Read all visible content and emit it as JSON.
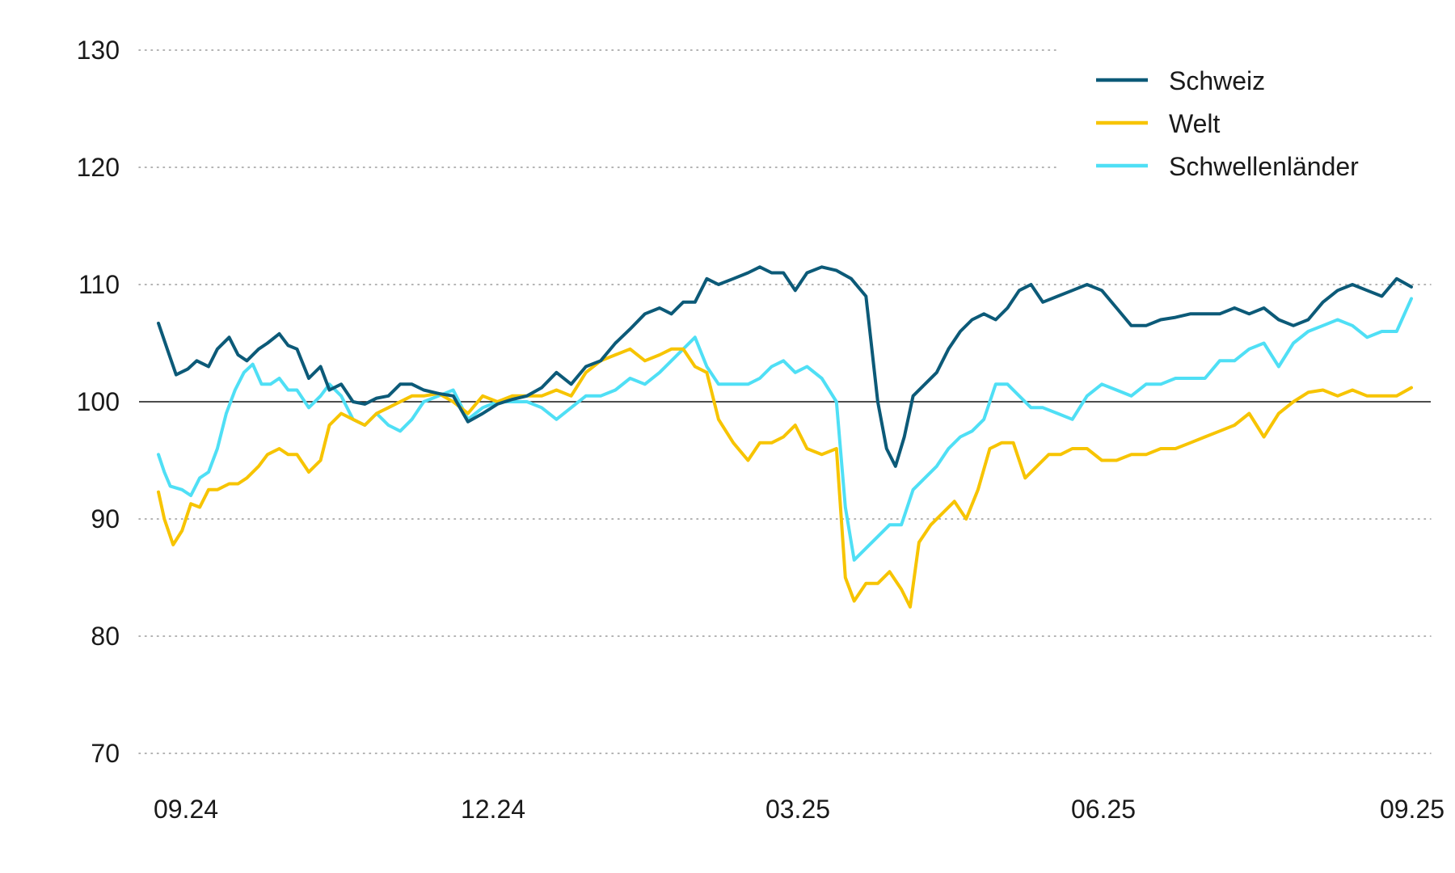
{
  "chart_data": {
    "type": "line",
    "title": "",
    "xlabel": "",
    "ylabel": "",
    "ylim": [
      70,
      130
    ],
    "yticks": [
      70,
      80,
      90,
      100,
      110,
      120,
      130
    ],
    "x_tick_labels": [
      "09.24",
      "12.24",
      "03.25",
      "06.25",
      "09.25"
    ],
    "baseline": 100,
    "grid": "horizontal dotted",
    "legend_position": "top-right",
    "series": [
      {
        "name": "Schweiz",
        "color": "#0c5a78",
        "values": [
          [
            0,
            106.7
          ],
          [
            0.03,
            104.5
          ],
          [
            0.06,
            102.3
          ],
          [
            0.1,
            102.8
          ],
          [
            0.13,
            103.5
          ],
          [
            0.17,
            103.0
          ],
          [
            0.2,
            104.5
          ],
          [
            0.24,
            105.5
          ],
          [
            0.27,
            104.0
          ],
          [
            0.3,
            103.5
          ],
          [
            0.34,
            104.5
          ],
          [
            0.37,
            105.0
          ],
          [
            0.41,
            105.8
          ],
          [
            0.44,
            104.8
          ],
          [
            0.47,
            104.5
          ],
          [
            0.51,
            102.0
          ],
          [
            0.55,
            103.0
          ],
          [
            0.58,
            101.0
          ],
          [
            0.62,
            101.5
          ],
          [
            0.66,
            100.0
          ],
          [
            0.7,
            99.8
          ],
          [
            0.74,
            100.3
          ],
          [
            0.78,
            100.5
          ],
          [
            0.82,
            101.5
          ],
          [
            0.86,
            101.5
          ],
          [
            0.9,
            101.0
          ],
          [
            0.95,
            100.7
          ],
          [
            1.0,
            100.5
          ],
          [
            1.05,
            98.3
          ],
          [
            1.1,
            99.0
          ],
          [
            1.15,
            99.8
          ],
          [
            1.2,
            100.2
          ],
          [
            1.25,
            100.5
          ],
          [
            1.3,
            101.2
          ],
          [
            1.35,
            102.5
          ],
          [
            1.4,
            101.5
          ],
          [
            1.45,
            103.0
          ],
          [
            1.5,
            103.5
          ],
          [
            1.55,
            105.0
          ],
          [
            1.6,
            106.2
          ],
          [
            1.65,
            107.5
          ],
          [
            1.7,
            108.0
          ],
          [
            1.74,
            107.5
          ],
          [
            1.78,
            108.5
          ],
          [
            1.82,
            108.5
          ],
          [
            1.86,
            110.5
          ],
          [
            1.9,
            110.0
          ],
          [
            1.95,
            110.5
          ],
          [
            2.0,
            111.0
          ],
          [
            2.04,
            111.5
          ],
          [
            2.08,
            111.0
          ],
          [
            2.12,
            111.0
          ],
          [
            2.16,
            109.5
          ],
          [
            2.2,
            111.0
          ],
          [
            2.25,
            111.5
          ],
          [
            2.3,
            111.2
          ],
          [
            2.35,
            110.5
          ],
          [
            2.4,
            109.0
          ],
          [
            2.44,
            100.0
          ],
          [
            2.47,
            96.0
          ],
          [
            2.5,
            94.5
          ],
          [
            2.53,
            97.0
          ],
          [
            2.56,
            100.5
          ],
          [
            2.6,
            101.5
          ],
          [
            2.64,
            102.5
          ],
          [
            2.68,
            104.5
          ],
          [
            2.72,
            106.0
          ],
          [
            2.76,
            107.0
          ],
          [
            2.8,
            107.5
          ],
          [
            2.84,
            107.0
          ],
          [
            2.88,
            108.0
          ],
          [
            2.92,
            109.5
          ],
          [
            2.96,
            110.0
          ],
          [
            3.0,
            108.5
          ],
          [
            3.05,
            109.0
          ],
          [
            3.1,
            109.5
          ],
          [
            3.15,
            110.0
          ],
          [
            3.2,
            109.5
          ],
          [
            3.25,
            108.0
          ],
          [
            3.3,
            106.5
          ],
          [
            3.35,
            106.5
          ],
          [
            3.4,
            107.0
          ],
          [
            3.45,
            107.2
          ],
          [
            3.5,
            107.5
          ],
          [
            3.55,
            107.5
          ],
          [
            3.6,
            107.5
          ],
          [
            3.65,
            108.0
          ],
          [
            3.7,
            107.5
          ],
          [
            3.75,
            108.0
          ],
          [
            3.8,
            107.0
          ],
          [
            3.85,
            106.5
          ],
          [
            3.9,
            107.0
          ],
          [
            3.95,
            108.5
          ],
          [
            4.0,
            109.5
          ],
          [
            4.05,
            110.0
          ],
          [
            4.1,
            109.5
          ],
          [
            4.15,
            109.0
          ],
          [
            4.2,
            110.5
          ],
          [
            4.25,
            109.8
          ]
        ]
      },
      {
        "name": "Welt",
        "color": "#f7c400",
        "values": [
          [
            0,
            92.3
          ],
          [
            0.02,
            90.0
          ],
          [
            0.05,
            87.8
          ],
          [
            0.08,
            89.0
          ],
          [
            0.11,
            91.3
          ],
          [
            0.14,
            91.0
          ],
          [
            0.17,
            92.5
          ],
          [
            0.2,
            92.5
          ],
          [
            0.24,
            93.0
          ],
          [
            0.27,
            93.0
          ],
          [
            0.3,
            93.5
          ],
          [
            0.34,
            94.5
          ],
          [
            0.37,
            95.5
          ],
          [
            0.41,
            96.0
          ],
          [
            0.44,
            95.5
          ],
          [
            0.47,
            95.5
          ],
          [
            0.51,
            94.0
          ],
          [
            0.55,
            95.0
          ],
          [
            0.58,
            98.0
          ],
          [
            0.62,
            99.0
          ],
          [
            0.66,
            98.5
          ],
          [
            0.7,
            98.0
          ],
          [
            0.74,
            99.0
          ],
          [
            0.78,
            99.5
          ],
          [
            0.82,
            100.0
          ],
          [
            0.86,
            100.5
          ],
          [
            0.9,
            100.5
          ],
          [
            0.95,
            100.7
          ],
          [
            1.0,
            100.0
          ],
          [
            1.05,
            99.0
          ],
          [
            1.1,
            100.5
          ],
          [
            1.15,
            100.0
          ],
          [
            1.2,
            100.5
          ],
          [
            1.25,
            100.5
          ],
          [
            1.3,
            100.5
          ],
          [
            1.35,
            101.0
          ],
          [
            1.4,
            100.5
          ],
          [
            1.45,
            102.5
          ],
          [
            1.5,
            103.5
          ],
          [
            1.55,
            104.0
          ],
          [
            1.6,
            104.5
          ],
          [
            1.65,
            103.5
          ],
          [
            1.7,
            104.0
          ],
          [
            1.74,
            104.5
          ],
          [
            1.78,
            104.5
          ],
          [
            1.82,
            103.0
          ],
          [
            1.86,
            102.5
          ],
          [
            1.9,
            98.5
          ],
          [
            1.95,
            96.5
          ],
          [
            2.0,
            95.0
          ],
          [
            2.04,
            96.5
          ],
          [
            2.08,
            96.5
          ],
          [
            2.12,
            97.0
          ],
          [
            2.16,
            98.0
          ],
          [
            2.2,
            96.0
          ],
          [
            2.25,
            95.5
          ],
          [
            2.3,
            96.0
          ],
          [
            2.33,
            85.0
          ],
          [
            2.36,
            83.0
          ],
          [
            2.4,
            84.5
          ],
          [
            2.44,
            84.5
          ],
          [
            2.48,
            85.5
          ],
          [
            2.52,
            84.0
          ],
          [
            2.55,
            82.5
          ],
          [
            2.58,
            88.0
          ],
          [
            2.62,
            89.5
          ],
          [
            2.66,
            90.5
          ],
          [
            2.7,
            91.5
          ],
          [
            2.74,
            90.0
          ],
          [
            2.78,
            92.5
          ],
          [
            2.82,
            96.0
          ],
          [
            2.86,
            96.5
          ],
          [
            2.9,
            96.5
          ],
          [
            2.94,
            93.5
          ],
          [
            2.98,
            94.5
          ],
          [
            3.02,
            95.5
          ],
          [
            3.06,
            95.5
          ],
          [
            3.1,
            96.0
          ],
          [
            3.15,
            96.0
          ],
          [
            3.2,
            95.0
          ],
          [
            3.25,
            95.0
          ],
          [
            3.3,
            95.5
          ],
          [
            3.35,
            95.5
          ],
          [
            3.4,
            96.0
          ],
          [
            3.45,
            96.0
          ],
          [
            3.5,
            96.5
          ],
          [
            3.55,
            97.0
          ],
          [
            3.6,
            97.5
          ],
          [
            3.65,
            98.0
          ],
          [
            3.7,
            99.0
          ],
          [
            3.75,
            97.0
          ],
          [
            3.8,
            99.0
          ],
          [
            3.85,
            100.0
          ],
          [
            3.9,
            100.8
          ],
          [
            3.95,
            101.0
          ],
          [
            4.0,
            100.5
          ],
          [
            4.05,
            101.0
          ],
          [
            4.1,
            100.5
          ],
          [
            4.15,
            100.5
          ],
          [
            4.2,
            100.5
          ],
          [
            4.25,
            101.2
          ]
        ]
      },
      {
        "name": "Schwellenländer",
        "color": "#4fdff5",
        "values": [
          [
            0,
            95.5
          ],
          [
            0.02,
            94.0
          ],
          [
            0.04,
            92.8
          ],
          [
            0.08,
            92.5
          ],
          [
            0.11,
            92.0
          ],
          [
            0.14,
            93.5
          ],
          [
            0.17,
            94.0
          ],
          [
            0.2,
            96.0
          ],
          [
            0.23,
            99.0
          ],
          [
            0.26,
            101.0
          ],
          [
            0.29,
            102.5
          ],
          [
            0.32,
            103.2
          ],
          [
            0.35,
            101.5
          ],
          [
            0.38,
            101.5
          ],
          [
            0.41,
            102.0
          ],
          [
            0.44,
            101.0
          ],
          [
            0.47,
            101.0
          ],
          [
            0.51,
            99.5
          ],
          [
            0.55,
            100.5
          ],
          [
            0.58,
            101.5
          ],
          [
            0.62,
            100.5
          ],
          [
            0.66,
            98.5
          ],
          [
            0.7,
            98.0
          ],
          [
            0.74,
            99.0
          ],
          [
            0.78,
            98.0
          ],
          [
            0.82,
            97.5
          ],
          [
            0.86,
            98.5
          ],
          [
            0.9,
            100.0
          ],
          [
            0.95,
            100.5
          ],
          [
            1.0,
            101.0
          ],
          [
            1.05,
            98.5
          ],
          [
            1.1,
            99.5
          ],
          [
            1.15,
            100.0
          ],
          [
            1.2,
            100.0
          ],
          [
            1.25,
            100.0
          ],
          [
            1.3,
            99.5
          ],
          [
            1.35,
            98.5
          ],
          [
            1.4,
            99.5
          ],
          [
            1.45,
            100.5
          ],
          [
            1.5,
            100.5
          ],
          [
            1.55,
            101.0
          ],
          [
            1.6,
            102.0
          ],
          [
            1.65,
            101.5
          ],
          [
            1.7,
            102.5
          ],
          [
            1.74,
            103.5
          ],
          [
            1.78,
            104.5
          ],
          [
            1.82,
            105.5
          ],
          [
            1.86,
            103.0
          ],
          [
            1.9,
            101.5
          ],
          [
            1.95,
            101.5
          ],
          [
            2.0,
            101.5
          ],
          [
            2.04,
            102.0
          ],
          [
            2.08,
            103.0
          ],
          [
            2.12,
            103.5
          ],
          [
            2.16,
            102.5
          ],
          [
            2.2,
            103.0
          ],
          [
            2.25,
            102.0
          ],
          [
            2.3,
            100.0
          ],
          [
            2.33,
            91.0
          ],
          [
            2.36,
            86.5
          ],
          [
            2.4,
            87.5
          ],
          [
            2.44,
            88.5
          ],
          [
            2.48,
            89.5
          ],
          [
            2.52,
            89.5
          ],
          [
            2.56,
            92.5
          ],
          [
            2.6,
            93.5
          ],
          [
            2.64,
            94.5
          ],
          [
            2.68,
            96.0
          ],
          [
            2.72,
            97.0
          ],
          [
            2.76,
            97.5
          ],
          [
            2.8,
            98.5
          ],
          [
            2.84,
            101.5
          ],
          [
            2.88,
            101.5
          ],
          [
            2.92,
            100.5
          ],
          [
            2.96,
            99.5
          ],
          [
            3.0,
            99.5
          ],
          [
            3.05,
            99.0
          ],
          [
            3.1,
            98.5
          ],
          [
            3.15,
            100.5
          ],
          [
            3.2,
            101.5
          ],
          [
            3.25,
            101.0
          ],
          [
            3.3,
            100.5
          ],
          [
            3.35,
            101.5
          ],
          [
            3.4,
            101.5
          ],
          [
            3.45,
            102.0
          ],
          [
            3.5,
            102.0
          ],
          [
            3.55,
            102.0
          ],
          [
            3.6,
            103.5
          ],
          [
            3.65,
            103.5
          ],
          [
            3.7,
            104.5
          ],
          [
            3.75,
            105.0
          ],
          [
            3.8,
            103.0
          ],
          [
            3.85,
            105.0
          ],
          [
            3.9,
            106.0
          ],
          [
            3.95,
            106.5
          ],
          [
            4.0,
            107.0
          ],
          [
            4.05,
            106.5
          ],
          [
            4.1,
            105.5
          ],
          [
            4.15,
            106.0
          ],
          [
            4.2,
            106.0
          ],
          [
            4.25,
            108.8
          ]
        ]
      }
    ]
  }
}
